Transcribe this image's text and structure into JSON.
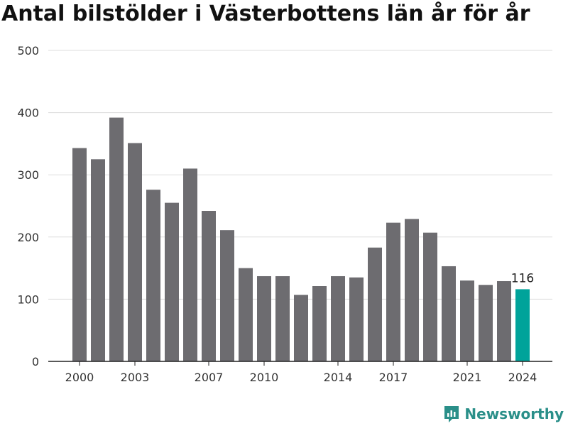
{
  "chart_data": {
    "type": "bar",
    "title": "Antal bilstölder i Västerbottens län år för år",
    "x": [
      2000,
      2001,
      2002,
      2003,
      2004,
      2005,
      2006,
      2007,
      2008,
      2009,
      2010,
      2011,
      2012,
      2013,
      2014,
      2015,
      2016,
      2017,
      2018,
      2019,
      2020,
      2021,
      2022,
      2023,
      2024
    ],
    "values": [
      343,
      325,
      392,
      351,
      276,
      255,
      310,
      242,
      211,
      150,
      137,
      137,
      107,
      121,
      137,
      135,
      183,
      223,
      229,
      207,
      153,
      130,
      123,
      129,
      116
    ],
    "x_tick_labels": [
      "2000",
      "2003",
      "2007",
      "2010",
      "2014",
      "2017",
      "2021",
      "2024"
    ],
    "y_tick_labels": [
      "0",
      "100",
      "200",
      "300",
      "400",
      "500"
    ],
    "ylim": [
      0,
      500
    ],
    "grid": true,
    "highlight": {
      "year": 2024,
      "label": "116"
    },
    "colors": {
      "bar": "#6d6c70",
      "highlight": "#00a39a",
      "grid": "#dddddd",
      "axis": "#222222"
    }
  },
  "brand": {
    "name": "Newsworthy",
    "logo_icon": "newsworthy-logo-icon",
    "color": "#2a8f89"
  }
}
